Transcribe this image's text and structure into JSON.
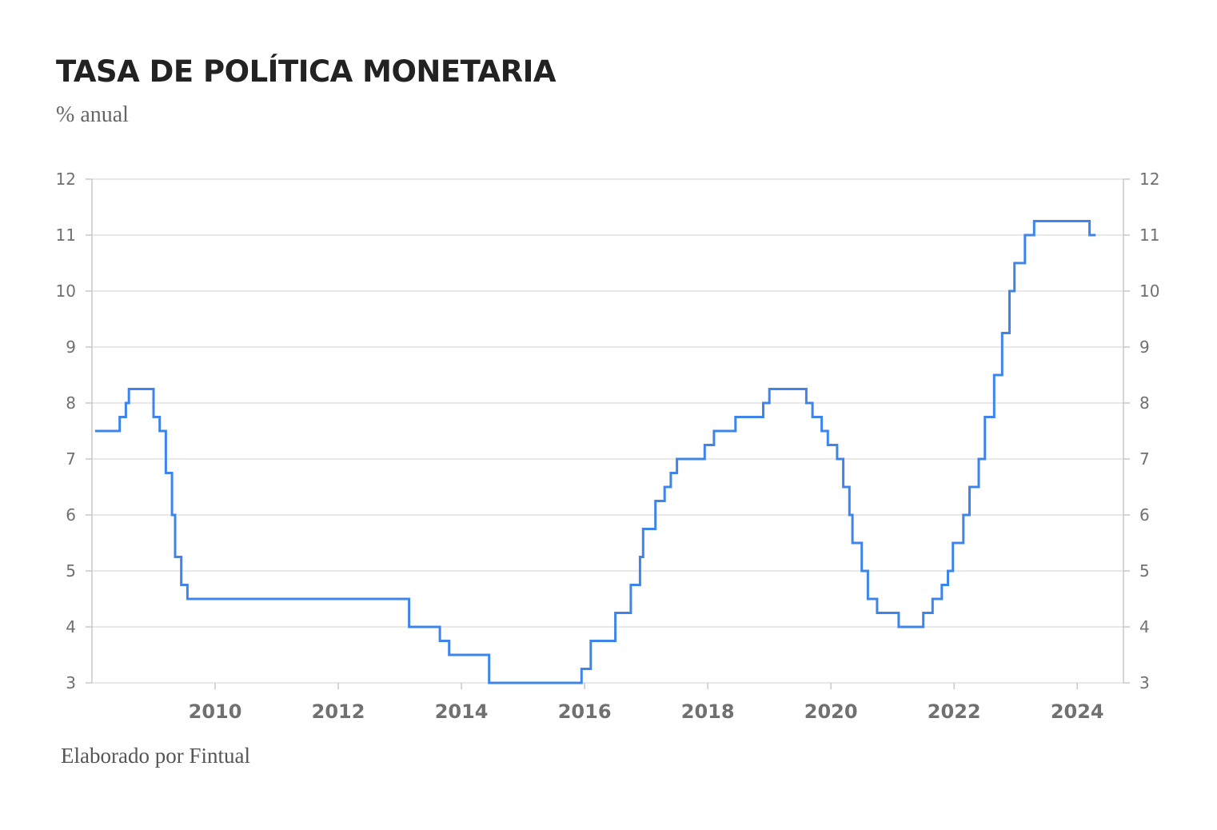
{
  "header": {
    "title": "TASA DE POLÍTICA MONETARIA",
    "subtitle": "% anual"
  },
  "footer": {
    "source": "Elaborado por Fintual"
  },
  "colors": {
    "series": "#3d85ec",
    "grid": "#e2e2e2",
    "axis": "#c8c8c8",
    "tick_text": "#707070"
  },
  "chart_data": {
    "type": "line",
    "interpolation": "step",
    "title": "TASA DE POLÍTICA MONETARIA",
    "subtitle": "% anual",
    "xlabel": "",
    "ylabel": "% anual",
    "ylim": [
      3,
      12
    ],
    "xlim": [
      2008.0,
      2024.75
    ],
    "y_ticks": [
      "3",
      "4",
      "5",
      "6",
      "7",
      "8",
      "9",
      "10",
      "11",
      "12"
    ],
    "x_ticks": [
      "2010",
      "2012",
      "2014",
      "2016",
      "2018",
      "2020",
      "2022",
      "2024"
    ],
    "y_axes": "left and right",
    "grid": true,
    "legend": "none",
    "series": [
      {
        "points": [
          [
            2008.05,
            7.5
          ],
          [
            2008.45,
            7.75
          ],
          [
            2008.55,
            8.0
          ],
          [
            2008.6,
            8.25
          ],
          [
            2009.0,
            7.75
          ],
          [
            2009.1,
            7.5
          ],
          [
            2009.2,
            6.75
          ],
          [
            2009.3,
            6.0
          ],
          [
            2009.35,
            5.25
          ],
          [
            2009.45,
            4.75
          ],
          [
            2009.55,
            4.5
          ],
          [
            2013.15,
            4.0
          ],
          [
            2013.65,
            3.75
          ],
          [
            2013.8,
            3.5
          ],
          [
            2014.45,
            3.0
          ],
          [
            2015.95,
            3.25
          ],
          [
            2016.1,
            3.75
          ],
          [
            2016.5,
            4.25
          ],
          [
            2016.75,
            4.75
          ],
          [
            2016.9,
            5.25
          ],
          [
            2016.95,
            5.75
          ],
          [
            2017.15,
            6.25
          ],
          [
            2017.3,
            6.5
          ],
          [
            2017.4,
            6.75
          ],
          [
            2017.5,
            7.0
          ],
          [
            2017.95,
            7.25
          ],
          [
            2018.1,
            7.5
          ],
          [
            2018.45,
            7.75
          ],
          [
            2018.9,
            8.0
          ],
          [
            2019.0,
            8.25
          ],
          [
            2019.6,
            8.0
          ],
          [
            2019.7,
            7.75
          ],
          [
            2019.85,
            7.5
          ],
          [
            2019.95,
            7.25
          ],
          [
            2020.1,
            7.0
          ],
          [
            2020.2,
            6.5
          ],
          [
            2020.3,
            6.0
          ],
          [
            2020.35,
            5.5
          ],
          [
            2020.5,
            5.0
          ],
          [
            2020.6,
            4.5
          ],
          [
            2020.75,
            4.25
          ],
          [
            2021.1,
            4.0
          ],
          [
            2021.5,
            4.25
          ],
          [
            2021.65,
            4.5
          ],
          [
            2021.8,
            4.75
          ],
          [
            2021.9,
            5.0
          ],
          [
            2021.98,
            5.5
          ],
          [
            2022.15,
            6.0
          ],
          [
            2022.25,
            6.5
          ],
          [
            2022.4,
            7.0
          ],
          [
            2022.5,
            7.75
          ],
          [
            2022.65,
            8.5
          ],
          [
            2022.78,
            9.25
          ],
          [
            2022.9,
            10.0
          ],
          [
            2022.98,
            10.5
          ],
          [
            2023.15,
            11.0
          ],
          [
            2023.3,
            11.25
          ],
          [
            2024.2,
            11.0
          ],
          [
            2024.3,
            11.0
          ]
        ]
      }
    ]
  }
}
